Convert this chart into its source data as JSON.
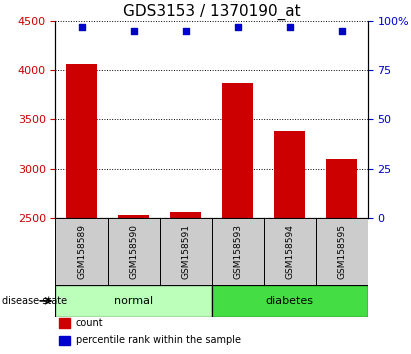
{
  "title": "GDS3153 / 1370190_at",
  "samples": [
    "GSM158589",
    "GSM158590",
    "GSM158591",
    "GSM158593",
    "GSM158594",
    "GSM158595"
  ],
  "bar_values": [
    4060,
    2530,
    2560,
    3870,
    3380,
    3100
  ],
  "percentile_values": [
    97,
    95,
    95,
    97,
    97,
    95
  ],
  "ylim_left": [
    2500,
    4500
  ],
  "ylim_right": [
    0,
    100
  ],
  "yticks_left": [
    2500,
    3000,
    3500,
    4000,
    4500
  ],
  "yticks_right": [
    0,
    25,
    50,
    75,
    100
  ],
  "bar_color": "#cc0000",
  "percentile_color": "#0000cc",
  "bar_baseline": 2500,
  "groups": [
    {
      "label": "normal",
      "indices": [
        0,
        1,
        2
      ],
      "color": "#bbffbb"
    },
    {
      "label": "diabetes",
      "indices": [
        3,
        4,
        5
      ],
      "color": "#44dd44"
    }
  ],
  "group_label_prefix": "disease state",
  "legend_items": [
    {
      "label": "count",
      "color": "#cc0000"
    },
    {
      "label": "percentile rank within the sample",
      "color": "#0000cc"
    }
  ],
  "title_fontsize": 11,
  "tick_fontsize": 8,
  "bar_width": 0.6,
  "sample_area_color": "#cccccc"
}
